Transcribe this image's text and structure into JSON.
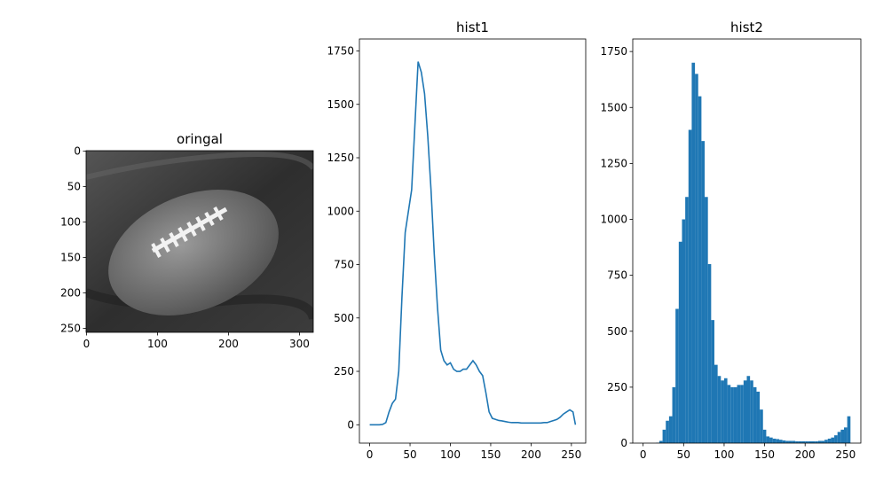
{
  "chart_data": [
    {
      "type": "image",
      "title": "oringal",
      "xlim": [
        -0.5,
        319.5
      ],
      "ylim": [
        255.5,
        -0.5
      ],
      "xticks": [
        0,
        100,
        200,
        300
      ],
      "yticks": [
        0,
        50,
        100,
        150,
        200,
        250
      ]
    },
    {
      "type": "line",
      "title": "hist1",
      "color": "#1f77b4",
      "x": [
        0,
        4,
        8,
        12,
        16,
        20,
        24,
        28,
        32,
        36,
        40,
        44,
        48,
        52,
        56,
        60,
        64,
        68,
        72,
        76,
        80,
        84,
        88,
        92,
        96,
        100,
        104,
        108,
        112,
        116,
        120,
        124,
        128,
        132,
        136,
        140,
        144,
        148,
        152,
        156,
        160,
        164,
        168,
        172,
        176,
        180,
        184,
        188,
        192,
        196,
        200,
        204,
        208,
        212,
        216,
        220,
        224,
        228,
        232,
        236,
        240,
        244,
        248,
        252,
        255
      ],
      "values": [
        0,
        0,
        0,
        0,
        2,
        10,
        60,
        100,
        120,
        250,
        600,
        900,
        1000,
        1100,
        1400,
        1700,
        1650,
        1550,
        1350,
        1100,
        800,
        550,
        350,
        300,
        280,
        290,
        260,
        250,
        250,
        260,
        260,
        280,
        300,
        280,
        250,
        230,
        150,
        60,
        30,
        25,
        20,
        18,
        15,
        12,
        10,
        10,
        10,
        8,
        8,
        8,
        8,
        8,
        8,
        8,
        10,
        10,
        15,
        20,
        25,
        35,
        50,
        60,
        70,
        60,
        0
      ],
      "xlim": [
        -12.75,
        267.75
      ],
      "ylim": [
        -86,
        1806
      ],
      "xticks": [
        0,
        50,
        100,
        150,
        200,
        250
      ],
      "yticks": [
        0,
        250,
        500,
        750,
        1000,
        1250,
        1500,
        1750
      ]
    },
    {
      "type": "histogram",
      "title": "hist2",
      "color": "#1f77b4",
      "bins": [
        0,
        4,
        8,
        12,
        16,
        20,
        24,
        28,
        32,
        36,
        40,
        44,
        48,
        52,
        56,
        60,
        64,
        68,
        72,
        76,
        80,
        84,
        88,
        92,
        96,
        100,
        104,
        108,
        112,
        116,
        120,
        124,
        128,
        132,
        136,
        140,
        144,
        148,
        152,
        156,
        160,
        164,
        168,
        172,
        176,
        180,
        184,
        188,
        192,
        196,
        200,
        204,
        208,
        212,
        216,
        220,
        224,
        228,
        232,
        236,
        240,
        244,
        248,
        252,
        256
      ],
      "counts": [
        0,
        0,
        0,
        0,
        2,
        10,
        60,
        100,
        120,
        250,
        600,
        900,
        1000,
        1100,
        1400,
        1700,
        1650,
        1550,
        1350,
        1100,
        800,
        550,
        350,
        300,
        280,
        290,
        260,
        250,
        250,
        260,
        260,
        280,
        300,
        280,
        250,
        230,
        150,
        60,
        30,
        25,
        20,
        18,
        15,
        12,
        10,
        10,
        10,
        8,
        8,
        8,
        8,
        8,
        8,
        8,
        10,
        10,
        15,
        20,
        25,
        35,
        50,
        60,
        70,
        120
      ],
      "xlim": [
        -12.8,
        268.8
      ],
      "ylim": [
        0,
        1806
      ],
      "xticks": [
        0,
        50,
        100,
        150,
        200,
        250
      ],
      "yticks": [
        0,
        250,
        500,
        750,
        1000,
        1250,
        1500,
        1750
      ]
    }
  ]
}
